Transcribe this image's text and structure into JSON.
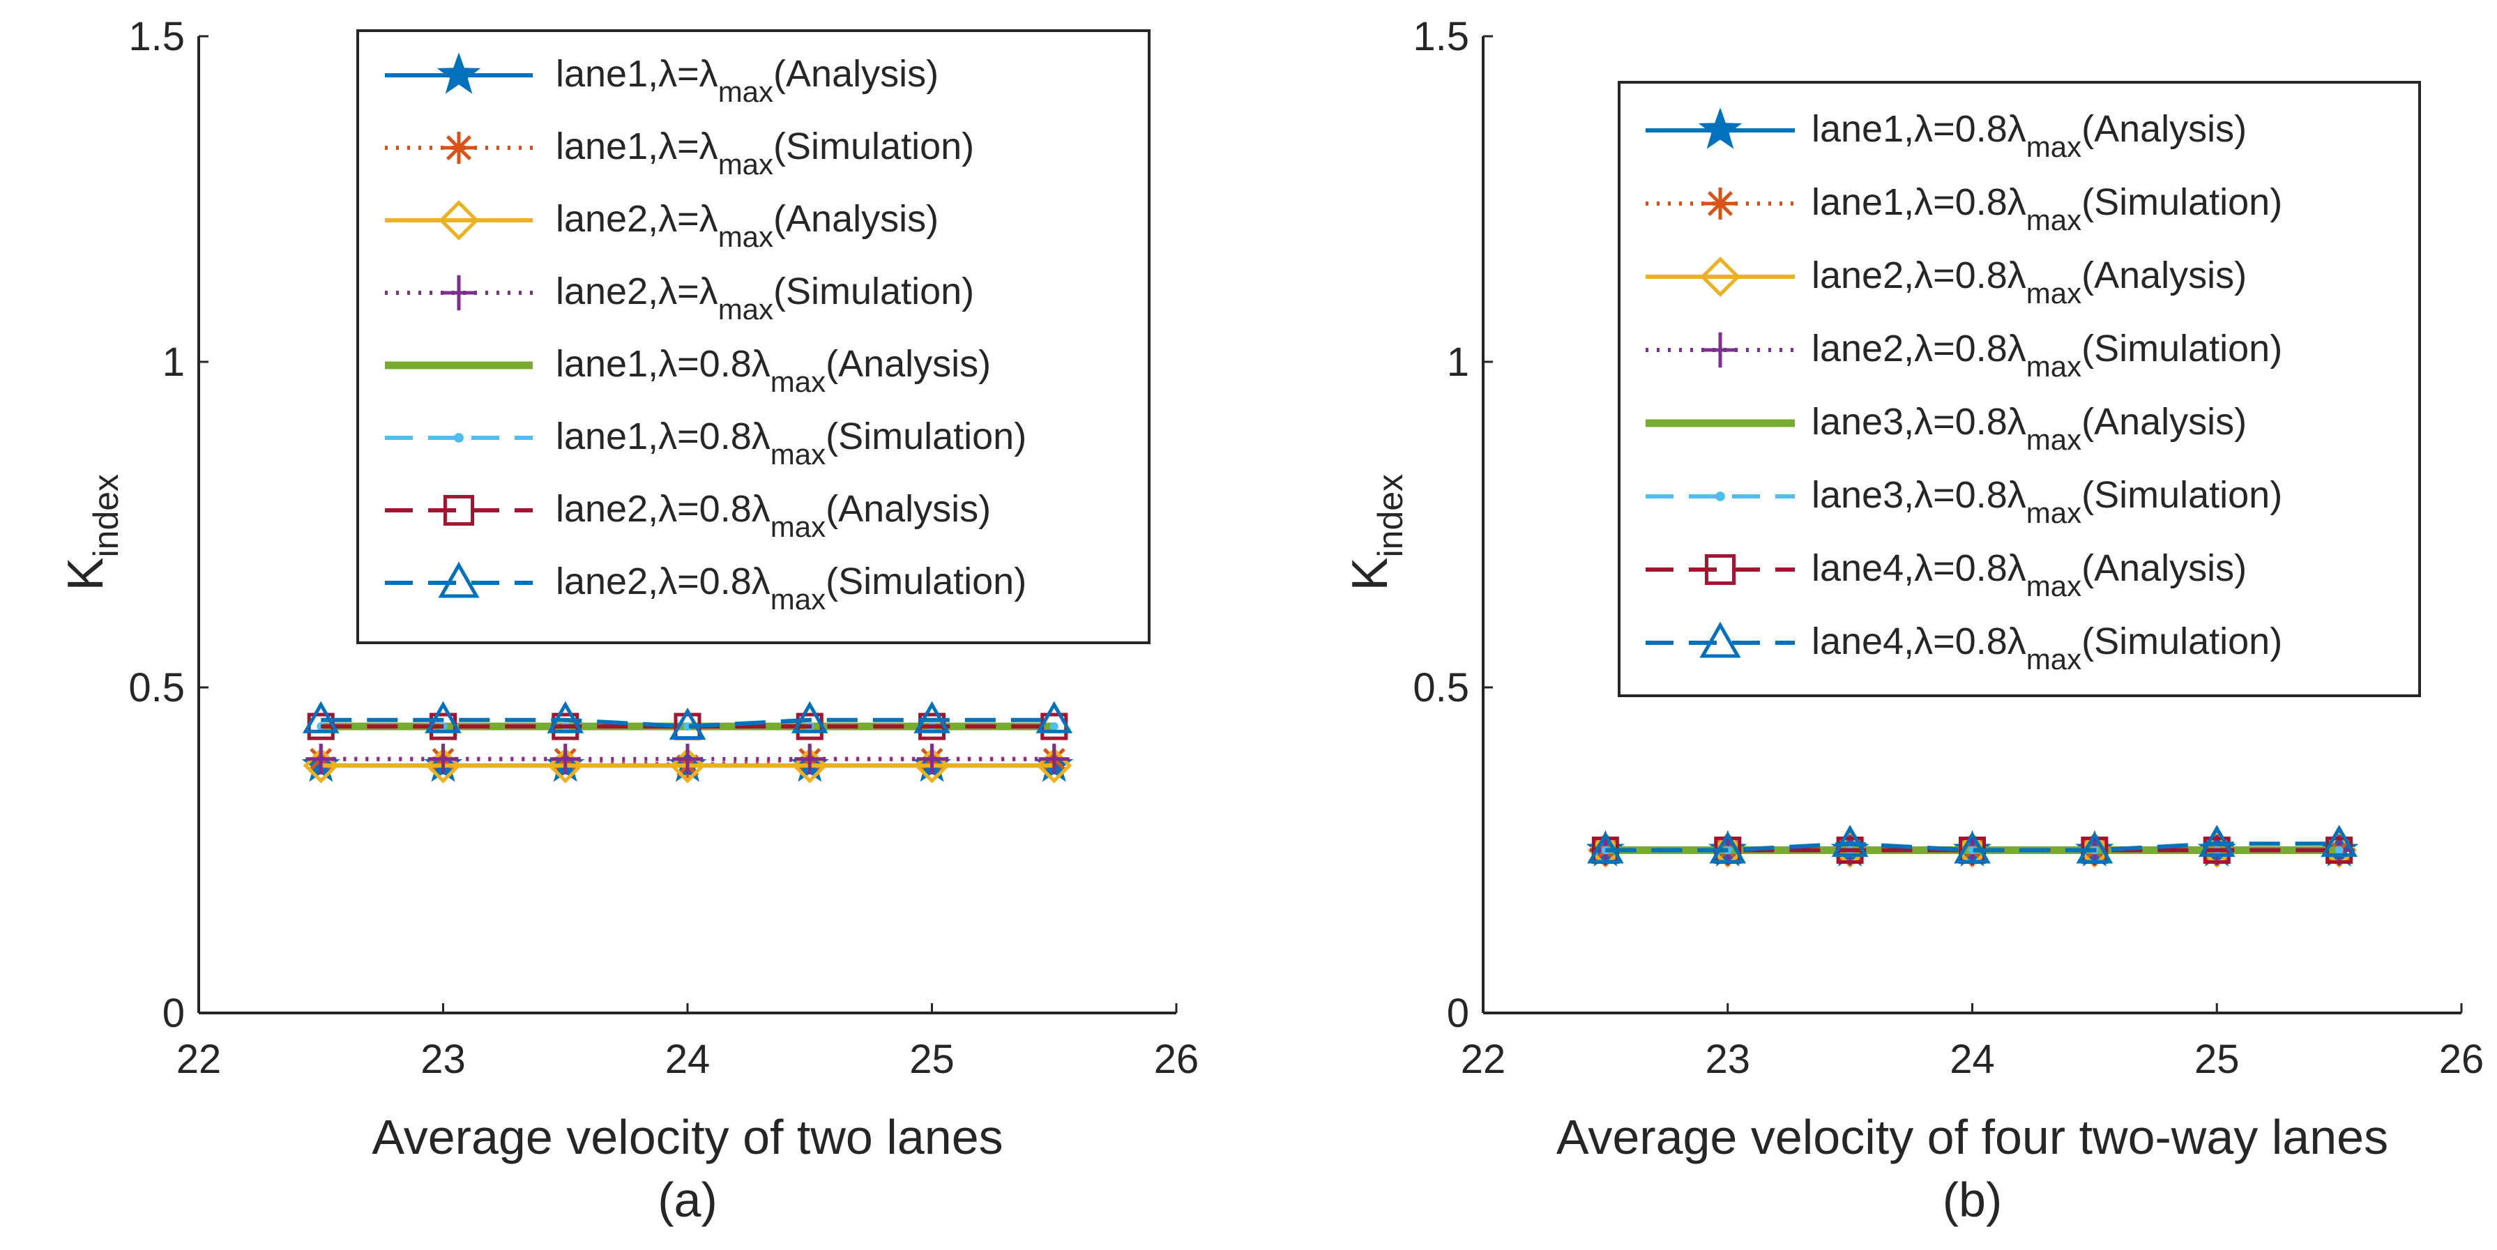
{
  "colors": {
    "blue": "#0072BD",
    "orange": "#D95319",
    "yellow": "#EDB120",
    "purple": "#7E2F8E",
    "green": "#77AC30",
    "cyan": "#4DBEEE",
    "darkred": "#A2142F",
    "axis": "#262626"
  },
  "chart_data": [
    {
      "id": "a",
      "type": "line",
      "caption": "(a)",
      "xlabel": "Average velocity of two lanes",
      "ylabel_main": "K",
      "ylabel_sub": "index",
      "xlim": [
        22,
        26
      ],
      "ylim": [
        0,
        1.5
      ],
      "xticks": [
        22,
        23,
        24,
        25,
        26
      ],
      "yticks": [
        0,
        0.5,
        1,
        1.5
      ],
      "ytick_labels": [
        "0",
        "0.5",
        "1",
        "1.5"
      ],
      "x": [
        22.5,
        23,
        23.5,
        24,
        24.5,
        25,
        25.5
      ],
      "legend_position": "top-right",
      "series": [
        {
          "name": "lane1,λ=λmax(Analysis)",
          "lane": "lane1,",
          "lam": "λ=λ",
          "sub": "max",
          "tail": "(Analysis)",
          "color": "blue",
          "line": "solid",
          "width": "normal",
          "marker": "star",
          "values": [
            0.38,
            0.38,
            0.38,
            0.38,
            0.38,
            0.38,
            0.38
          ]
        },
        {
          "name": "lane1,λ=λmax(Simulation)",
          "lane": "lane1,",
          "lam": "λ=λ",
          "sub": "max",
          "tail": "(Simulation)",
          "color": "orange",
          "line": "dotted",
          "width": "normal",
          "marker": "asterisk",
          "values": [
            0.39,
            0.39,
            0.39,
            0.38,
            0.39,
            0.39,
            0.39
          ]
        },
        {
          "name": "lane2,λ=λmax(Analysis)",
          "lane": "lane2,",
          "lam": "λ=λ",
          "sub": "max",
          "tail": "(Analysis)",
          "color": "yellow",
          "line": "solid",
          "width": "normal",
          "marker": "diamond",
          "values": [
            0.38,
            0.38,
            0.38,
            0.38,
            0.38,
            0.38,
            0.38
          ]
        },
        {
          "name": "lane2,λ=λmax(Simulation)",
          "lane": "lane2,",
          "lam": "λ=λ",
          "sub": "max",
          "tail": "(Simulation)",
          "color": "purple",
          "line": "dotted",
          "width": "normal",
          "marker": "plus",
          "values": [
            0.39,
            0.39,
            0.39,
            0.39,
            0.39,
            0.39,
            0.39
          ]
        },
        {
          "name": "lane1,λ=0.8λmax(Analysis)",
          "lane": "lane1,",
          "lam": "λ=0.8λ",
          "sub": "max",
          "tail": "(Analysis)",
          "color": "green",
          "line": "solid",
          "width": "thick",
          "marker": "none",
          "values": [
            0.44,
            0.44,
            0.44,
            0.44,
            0.44,
            0.44,
            0.44
          ]
        },
        {
          "name": "lane1,λ=0.8λmax(Simulation)",
          "lane": "lane1,",
          "lam": "λ=0.8λ",
          "sub": "max",
          "tail": "(Simulation)",
          "color": "cyan",
          "line": "dashed",
          "width": "normal",
          "marker": "dot",
          "values": [
            0.44,
            0.44,
            0.44,
            0.44,
            0.44,
            0.44,
            0.44
          ]
        },
        {
          "name": "lane2,λ=0.8λmax(Analysis)",
          "lane": "lane2,",
          "lam": "λ=0.8λ",
          "sub": "max",
          "tail": "(Analysis)",
          "color": "darkred",
          "line": "dashed",
          "width": "normal",
          "marker": "square",
          "values": [
            0.44,
            0.44,
            0.44,
            0.44,
            0.44,
            0.44,
            0.44
          ]
        },
        {
          "name": "lane2,λ=0.8λmax(Simulation)",
          "lane": "lane2,",
          "lam": "λ=0.8λ",
          "sub": "max",
          "tail": "(Simulation)",
          "color": "blue",
          "line": "dashed",
          "width": "normal",
          "marker": "triangle",
          "values": [
            0.45,
            0.45,
            0.45,
            0.44,
            0.45,
            0.45,
            0.45
          ]
        }
      ]
    },
    {
      "id": "b",
      "type": "line",
      "caption": "(b)",
      "xlabel": "Average velocity of four two-way lanes",
      "ylabel_main": "K",
      "ylabel_sub": "index",
      "xlim": [
        22,
        26
      ],
      "ylim": [
        0,
        1.5
      ],
      "xticks": [
        22,
        23,
        24,
        25,
        26
      ],
      "yticks": [
        0,
        0.5,
        1,
        1.5
      ],
      "ytick_labels": [
        "0",
        "0.5",
        "1",
        "1.5"
      ],
      "x": [
        22.5,
        23,
        23.5,
        24,
        24.5,
        25,
        25.5
      ],
      "legend_position": "top-right",
      "series": [
        {
          "name": "lane1,λ=0.8λmax(Analysis)",
          "lane": "lane1,",
          "lam": "λ=0.8λ",
          "sub": "max",
          "tail": "(Analysis)",
          "color": "blue",
          "line": "solid",
          "width": "normal",
          "marker": "star",
          "values": [
            0.25,
            0.25,
            0.25,
            0.25,
            0.25,
            0.25,
            0.25
          ]
        },
        {
          "name": "lane1,λ=0.8λmax(Simulation)",
          "lane": "lane1,",
          "lam": "λ=0.8λ",
          "sub": "max",
          "tail": "(Simulation)",
          "color": "orange",
          "line": "dotted",
          "width": "normal",
          "marker": "asterisk",
          "values": [
            0.25,
            0.25,
            0.25,
            0.25,
            0.25,
            0.25,
            0.25
          ]
        },
        {
          "name": "lane2,λ=0.8λmax(Analysis)",
          "lane": "lane2,",
          "lam": "λ=0.8λ",
          "sub": "max",
          "tail": "(Analysis)",
          "color": "yellow",
          "line": "solid",
          "width": "normal",
          "marker": "diamond",
          "values": [
            0.25,
            0.25,
            0.25,
            0.25,
            0.25,
            0.25,
            0.25
          ]
        },
        {
          "name": "lane2,λ=0.8λmax(Simulation)",
          "lane": "lane2,",
          "lam": "λ=0.8λ",
          "sub": "max",
          "tail": "(Simulation)",
          "color": "purple",
          "line": "dotted",
          "width": "normal",
          "marker": "plus",
          "values": [
            0.25,
            0.25,
            0.25,
            0.25,
            0.25,
            0.25,
            0.25
          ]
        },
        {
          "name": "lane3,λ=0.8λmax(Analysis)",
          "lane": "lane3,",
          "lam": "λ=0.8λ",
          "sub": "max",
          "tail": "(Analysis)",
          "color": "green",
          "line": "solid",
          "width": "thick",
          "marker": "none",
          "values": [
            0.25,
            0.25,
            0.25,
            0.25,
            0.25,
            0.25,
            0.25
          ]
        },
        {
          "name": "lane3,λ=0.8λmax(Simulation)",
          "lane": "lane3,",
          "lam": "λ=0.8λ",
          "sub": "max",
          "tail": "(Simulation)",
          "color": "cyan",
          "line": "dashed",
          "width": "normal",
          "marker": "dot",
          "values": [
            0.25,
            0.25,
            0.25,
            0.25,
            0.25,
            0.25,
            0.25
          ]
        },
        {
          "name": "lane4,λ=0.8λmax(Analysis)",
          "lane": "lane4,",
          "lam": "λ=0.8λ",
          "sub": "max",
          "tail": "(Analysis)",
          "color": "darkred",
          "line": "dashed",
          "width": "normal",
          "marker": "square",
          "values": [
            0.25,
            0.25,
            0.25,
            0.25,
            0.25,
            0.25,
            0.25
          ]
        },
        {
          "name": "lane4,λ=0.8λmax(Simulation)",
          "lane": "lane4,",
          "lam": "λ=0.8λ",
          "sub": "max",
          "tail": "(Simulation)",
          "color": "blue",
          "line": "dashed",
          "width": "normal",
          "marker": "triangle",
          "values": [
            0.25,
            0.25,
            0.26,
            0.25,
            0.25,
            0.26,
            0.26
          ]
        }
      ]
    }
  ]
}
